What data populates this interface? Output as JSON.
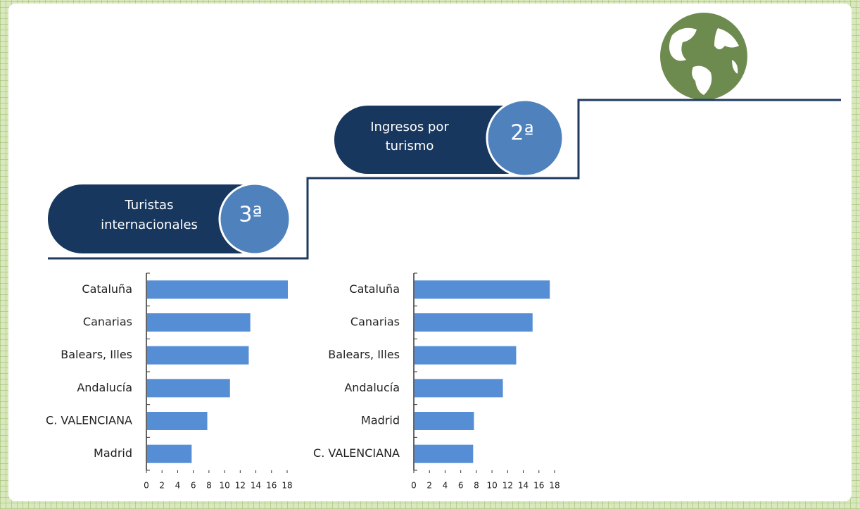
{
  "badges": [
    {
      "lines": [
        "Turistas",
        "internacionales"
      ],
      "rank": "3ª"
    },
    {
      "lines": [
        "Ingresos por",
        "turismo"
      ],
      "rank": "2ª"
    }
  ],
  "chart_data": [
    {
      "type": "barh",
      "color": "#558ed5",
      "categories": [
        "Cataluña",
        "Canarias",
        "Balears, Illes",
        "Andalucía",
        "C. VALENCIANA",
        "Madrid"
      ],
      "values": [
        18,
        13.2,
        13.0,
        10.6,
        7.7,
        5.7
      ],
      "xlim": [
        0,
        18
      ],
      "xticks": [
        0,
        2,
        4,
        6,
        8,
        10,
        12,
        14,
        16,
        18
      ]
    },
    {
      "type": "barh",
      "color": "#558ed5",
      "categories": [
        "Cataluña",
        "Canarias",
        "Balears, Illes",
        "Andalucía",
        "Madrid",
        "C. VALENCIANA"
      ],
      "values": [
        17.3,
        15.1,
        13.0,
        11.3,
        7.6,
        7.5
      ],
      "xlim": [
        0,
        18
      ],
      "xticks": [
        0,
        2,
        4,
        6,
        8,
        10,
        12,
        14,
        16,
        18
      ]
    }
  ]
}
